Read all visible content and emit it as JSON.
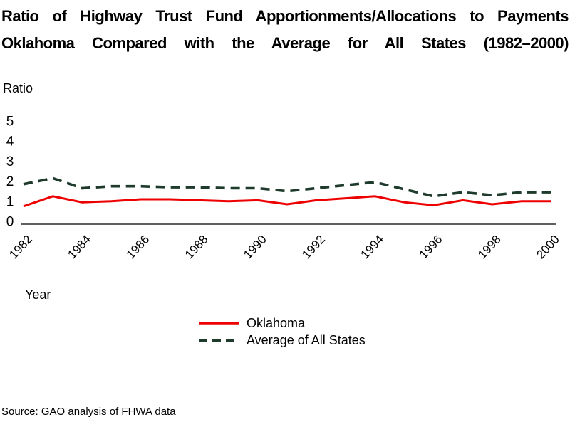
{
  "title": {
    "line1": "Ratio of Highway Trust Fund Apportionments/Allocations to Payments",
    "line2": "Oklahoma Compared with the Average for All States (1982–2000)"
  },
  "source": "Source: GAO analysis of FHWA data",
  "colors": {
    "oklahoma_line": "#ee0000",
    "average_line": "#1f3b2c",
    "axis": "#000000"
  },
  "chart_data": {
    "type": "line",
    "title": "Ratio of Highway Trust Fund Apportionments/Allocations to Payments — Oklahoma Compared with the Average for All States (1982–2000)",
    "xlabel": "Year",
    "ylabel": "Ratio",
    "ylim": [
      0,
      5
    ],
    "y_ticks": [
      0,
      1,
      2,
      3,
      4,
      5
    ],
    "grid": false,
    "legend_position": "bottom-center",
    "x": [
      1982,
      1983,
      1984,
      1985,
      1986,
      1987,
      1988,
      1989,
      1990,
      1991,
      1992,
      1993,
      1994,
      1995,
      1996,
      1997,
      1998,
      1999,
      2000
    ],
    "x_tick_labels": [
      "1982",
      "1984",
      "1986",
      "1988",
      "1990",
      "1992",
      "1994",
      "1996",
      "1998",
      "2000"
    ],
    "series": [
      {
        "name": "Oklahoma",
        "style": "solid",
        "color": "#ee0000",
        "values": [
          0.75,
          1.25,
          0.95,
          1.0,
          1.1,
          1.1,
          1.05,
          1.0,
          1.05,
          0.85,
          1.05,
          1.15,
          1.25,
          0.95,
          0.8,
          1.05,
          0.85,
          1.0,
          1.0
        ]
      },
      {
        "name": "Average of All States",
        "style": "dashed",
        "color": "#1f3b2c",
        "values": [
          1.85,
          2.15,
          1.65,
          1.75,
          1.75,
          1.7,
          1.7,
          1.65,
          1.65,
          1.5,
          1.65,
          1.8,
          1.95,
          1.6,
          1.25,
          1.45,
          1.3,
          1.45,
          1.45
        ]
      }
    ]
  }
}
